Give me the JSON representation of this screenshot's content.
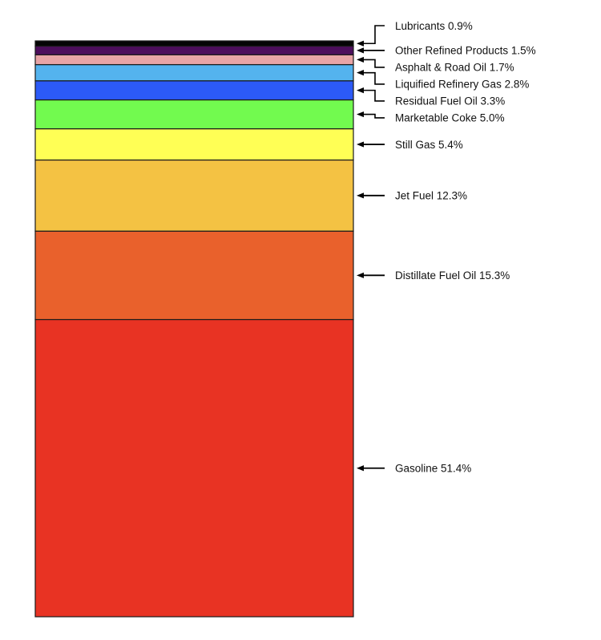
{
  "chart_data": {
    "type": "bar",
    "stacked": true,
    "unit": "%",
    "axes": "none",
    "grid": false,
    "legend": "none",
    "segments": [
      {
        "label": "Gasoline",
        "value": 51.4,
        "text": "Gasoline 51.4%",
        "color": "#e83323"
      },
      {
        "label": "Distillate Fuel Oil",
        "value": 15.3,
        "text": "Distillate Fuel Oil 15.3%",
        "color": "#e9612c"
      },
      {
        "label": "Jet Fuel",
        "value": 12.3,
        "text": "Jet Fuel 12.3%",
        "color": "#f4c243"
      },
      {
        "label": "Still Gas",
        "value": 5.4,
        "text": "Still Gas 5.4%",
        "color": "#ffff55"
      },
      {
        "label": "Marketable Coke",
        "value": 5.0,
        "text": "Marketable Coke 5.0%",
        "color": "#72fa4f"
      },
      {
        "label": "Residual Fuel Oil",
        "value": 3.3,
        "text": "Residual Fuel Oil 3.3%",
        "color": "#2c5af7"
      },
      {
        "label": "Liquified Refinery Gas",
        "value": 2.8,
        "text": "Liquified Refinery Gas 2.8%",
        "color": "#54b3ee"
      },
      {
        "label": "Asphalt & Road Oil",
        "value": 1.7,
        "text": "Asphalt & Road Oil 1.7%",
        "color": "#e8a4a6"
      },
      {
        "label": "Other Refined Products",
        "value": 1.5,
        "text": "Other Refined Products 1.5%",
        "color": "#4d0e5c"
      },
      {
        "label": "Lubricants",
        "value": 0.9,
        "text": "Lubricants 0.9%",
        "color": "#050505"
      }
    ]
  }
}
